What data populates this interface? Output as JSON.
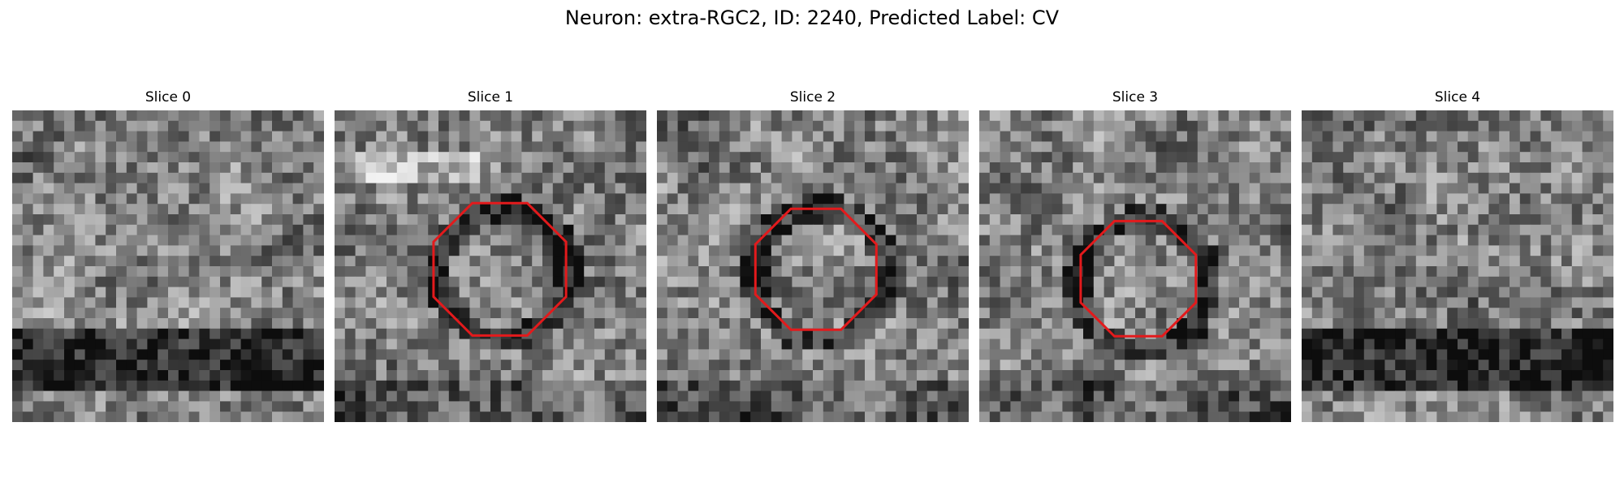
{
  "title": "Neuron: extra-RGC2, ID: 2240, Predicted Label: CV",
  "panels": [
    {
      "label": "Slice 0",
      "seed": 11,
      "structure": "band-bottom",
      "marker": null
    },
    {
      "label": "Slice 1",
      "seed": 23,
      "structure": "ring-bright",
      "marker": {
        "cx": 0.53,
        "cy": 0.51,
        "r": 0.23
      }
    },
    {
      "label": "Slice 2",
      "seed": 37,
      "structure": "ring-dark",
      "marker": {
        "cx": 0.51,
        "cy": 0.51,
        "r": 0.21
      }
    },
    {
      "label": "Slice 3",
      "seed": 41,
      "structure": "ring-dark",
      "marker": {
        "cx": 0.51,
        "cy": 0.54,
        "r": 0.2
      }
    },
    {
      "label": "Slice 4",
      "seed": 53,
      "structure": "band-bottom",
      "marker": null
    }
  ],
  "colors": {
    "marker": "#e31a1c"
  },
  "grid_size": 30
}
